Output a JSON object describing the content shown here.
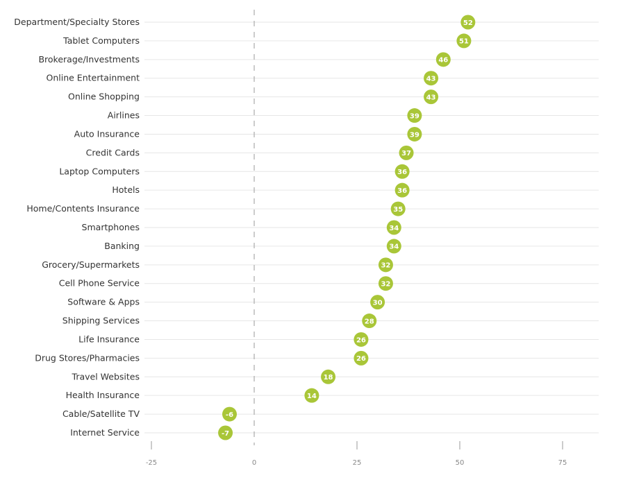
{
  "chart_data": {
    "type": "scatter",
    "orientation": "horizontal",
    "title": "",
    "xlabel": "",
    "ylabel": "",
    "xlim": [
      -25,
      85
    ],
    "xticks": [
      -25,
      0,
      25,
      50,
      75
    ],
    "grid": "horizontal",
    "legend": "none",
    "colors": {
      "point": "#a9c638",
      "gridline": "#e6e6e6",
      "zero_line": "#aaaaaa"
    },
    "categories": [
      "Department/Specialty Stores",
      "Tablet Computers",
      "Brokerage/Investments",
      "Online Entertainment",
      "Online Shopping",
      "Airlines",
      "Auto Insurance",
      "Credit Cards",
      "Laptop Computers",
      "Hotels",
      "Home/Contents Insurance",
      "Smartphones",
      "Banking",
      "Grocery/Supermarkets",
      "Cell Phone Service",
      "Software & Apps",
      "Shipping Services",
      "Life Insurance",
      "Drug Stores/Pharmacies",
      "Travel Websites",
      "Health Insurance",
      "Cable/Satellite TV",
      "Internet Service"
    ],
    "values": [
      52,
      51,
      46,
      43,
      43,
      39,
      39,
      37,
      36,
      36,
      35,
      34,
      34,
      32,
      32,
      30,
      28,
      26,
      26,
      18,
      14,
      -6,
      -7
    ]
  }
}
